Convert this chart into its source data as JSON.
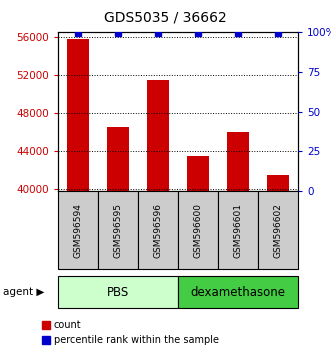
{
  "title": "GDS5035 / 36662",
  "samples": [
    "GSM596594",
    "GSM596595",
    "GSM596596",
    "GSM596600",
    "GSM596601",
    "GSM596602"
  ],
  "counts": [
    55800,
    46500,
    51500,
    43500,
    46000,
    41500
  ],
  "percentiles": [
    99,
    99,
    99,
    99,
    99,
    99
  ],
  "ylim_left": [
    39800,
    56500
  ],
  "ylim_right": [
    0,
    100
  ],
  "yticks_left": [
    40000,
    44000,
    48000,
    52000,
    56000
  ],
  "yticks_right": [
    0,
    25,
    50,
    75,
    100
  ],
  "yticklabels_left": [
    "40000",
    "44000",
    "48000",
    "52000",
    "56000"
  ],
  "yticklabels_right": [
    "0",
    "25",
    "50",
    "75",
    "100%"
  ],
  "bar_color": "#cc0000",
  "dot_color": "#0000cc",
  "group1_label": "PBS",
  "group2_label": "dexamethasone",
  "group1_color": "#ccffcc",
  "group2_color": "#44cc44",
  "legend_count": "count",
  "legend_percentile": "percentile rank within the sample",
  "bar_width": 0.55,
  "sample_box_color": "#cccccc",
  "n_group1": 3,
  "n_group2": 3
}
